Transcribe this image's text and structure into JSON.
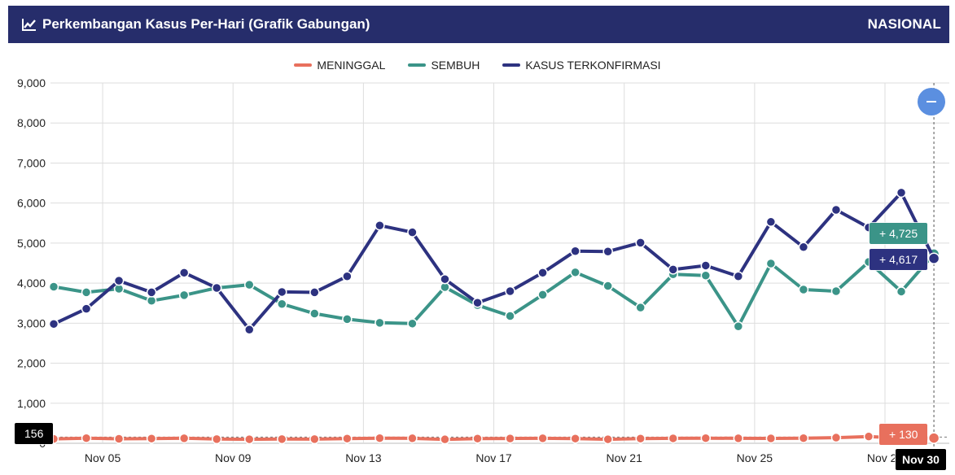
{
  "header": {
    "icon": "chart-line-icon",
    "title": "Perkembangan Kasus Per-Hari (Grafik Gabungan)",
    "region": "NASIONAL"
  },
  "legend": [
    {
      "label": "MENINGGAL",
      "color": "#e8705d"
    },
    {
      "label": "SEMBUH",
      "color": "#3b9488"
    },
    {
      "label": "KASUS TERKONFIRMASI",
      "color": "#2d3280"
    }
  ],
  "zoom_button": {
    "icon": "minus-icon"
  },
  "tooltips": {
    "sembuh": "+ 4,725",
    "kasus": "+ 4,617",
    "meninggal": "+ 130",
    "y_crosshair": "156",
    "x_crosshair": "Nov 30"
  },
  "chart_data": {
    "type": "line",
    "title": "Perkembangan Kasus Per-Hari (Grafik Gabungan)",
    "xlabel": "",
    "ylabel": "",
    "ylim": [
      0,
      9000
    ],
    "yticks": [
      0,
      1000,
      2000,
      3000,
      4000,
      5000,
      6000,
      7000,
      8000,
      9000
    ],
    "ytick_labels": [
      "0",
      "1,000",
      "2,000",
      "3,000",
      "4,000",
      "5,000",
      "6,000",
      "7,000",
      "8,000",
      "9,000"
    ],
    "x": [
      "Nov 03",
      "Nov 04",
      "Nov 05",
      "Nov 06",
      "Nov 07",
      "Nov 08",
      "Nov 09",
      "Nov 10",
      "Nov 11",
      "Nov 12",
      "Nov 13",
      "Nov 14",
      "Nov 15",
      "Nov 16",
      "Nov 17",
      "Nov 18",
      "Nov 19",
      "Nov 20",
      "Nov 21",
      "Nov 22",
      "Nov 23",
      "Nov 24",
      "Nov 25",
      "Nov 26",
      "Nov 27",
      "Nov 28",
      "Nov 29",
      "Nov 30"
    ],
    "xtick_labels": [
      "Nov 05",
      "Nov 09",
      "Nov 13",
      "Nov 17",
      "Nov 21",
      "Nov 25",
      "Nov 29"
    ],
    "grid": true,
    "legend_position": "top-center",
    "series": [
      {
        "name": "MENINGGAL",
        "color": "#e8705d",
        "values": [
          110,
          128,
          112,
          118,
          125,
          105,
          100,
          105,
          104,
          118,
          128,
          124,
          98,
          118,
          120,
          124,
          118,
          100,
          118,
          123,
          128,
          124,
          122,
          128,
          141,
          169,
          130,
          130
        ]
      },
      {
        "name": "SEMBUH",
        "color": "#3b9488",
        "values": [
          3910,
          3770,
          3860,
          3560,
          3700,
          3880,
          3960,
          3480,
          3240,
          3100,
          3010,
          2990,
          3900,
          3450,
          3180,
          3710,
          4270,
          3930,
          3390,
          4220,
          4190,
          2920,
          4490,
          3840,
          3800,
          4530,
          3790,
          4725
        ]
      },
      {
        "name": "KASUS TERKONFIRMASI",
        "color": "#2d3280",
        "values": [
          2980,
          3360,
          4060,
          3770,
          4260,
          3880,
          2840,
          3780,
          3770,
          4170,
          5440,
          5270,
          4100,
          3510,
          3800,
          4260,
          4800,
          4790,
          5010,
          4340,
          4440,
          4170,
          5530,
          4900,
          5830,
          5390,
          6260,
          4617
        ]
      }
    ]
  }
}
